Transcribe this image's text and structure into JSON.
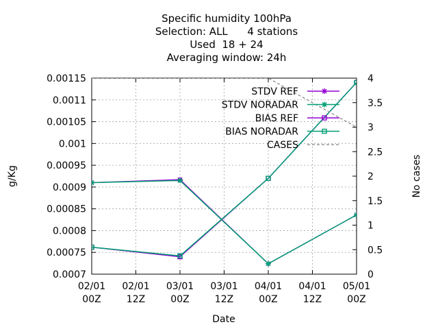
{
  "chart_data": {
    "type": "line",
    "title_lines": [
      "Specific humidity 100hPa",
      "Selection: ALL      4 stations",
      "Used  18 + 24",
      "Averaging window: 24h"
    ],
    "xlabel": "Date",
    "ylabel": "g/Kg",
    "y2label": "No cases",
    "x_ticks": [
      "02/01\n00Z",
      "02/01\n12Z",
      "03/01\n00Z",
      "03/01\n12Z",
      "04/01\n00Z",
      "04/01\n12Z",
      "05/01\n00Z"
    ],
    "x_tick_values": [
      0,
      12,
      24,
      36,
      48,
      60,
      72
    ],
    "xlim": [
      0,
      72
    ],
    "y_ticks": [
      "0.0007",
      "0.00075",
      "0.0008",
      "0.00085",
      "0.0009",
      "0.00095",
      "0.001",
      "0.00105",
      "0.0011",
      "0.00115"
    ],
    "y_tick_values": [
      0.0007,
      0.00075,
      0.0008,
      0.00085,
      0.0009,
      0.00095,
      0.001,
      0.00105,
      0.0011,
      0.00115
    ],
    "ylim": [
      0.0007,
      0.00115
    ],
    "y2_ticks": [
      "0",
      "0.5",
      "1",
      "1.5",
      "2",
      "2.5",
      "3",
      "3.5",
      "4"
    ],
    "y2_tick_values": [
      0,
      0.5,
      1,
      1.5,
      2,
      2.5,
      3,
      3.5,
      4
    ],
    "y2lim": [
      0,
      4
    ],
    "grid": true,
    "legend_position": "top-right",
    "series": [
      {
        "name": "STDV REF",
        "color": "#9400d3",
        "marker": "star",
        "axis": "y",
        "dash": "solid",
        "x": [
          0,
          24,
          48,
          72
        ],
        "y": [
          0.00091,
          0.000917,
          0.000724,
          0.000836
        ]
      },
      {
        "name": "STDV NORADAR",
        "color": "#009e73",
        "marker": "star",
        "axis": "y",
        "dash": "solid",
        "x": [
          0,
          24,
          48,
          72
        ],
        "y": [
          0.00091,
          0.000915,
          0.000724,
          0.000836
        ]
      },
      {
        "name": "BIAS REF",
        "color": "#9400d3",
        "marker": "square",
        "axis": "y",
        "dash": "solid",
        "x": [
          0,
          24,
          48,
          72
        ],
        "y": [
          0.000762,
          0.00074,
          0.00092,
          0.00114
        ]
      },
      {
        "name": "BIAS NORADAR",
        "color": "#009e73",
        "marker": "square",
        "axis": "y",
        "dash": "solid",
        "x": [
          0,
          24,
          48,
          72
        ],
        "y": [
          0.000762,
          0.000742,
          0.00092,
          0.00114
        ]
      },
      {
        "name": "CASES",
        "color": "#999999",
        "marker": "none",
        "axis": "y2",
        "dash": "dashed",
        "x": [
          0,
          24,
          48,
          72
        ],
        "y": [
          4,
          4,
          4,
          3
        ]
      }
    ]
  }
}
